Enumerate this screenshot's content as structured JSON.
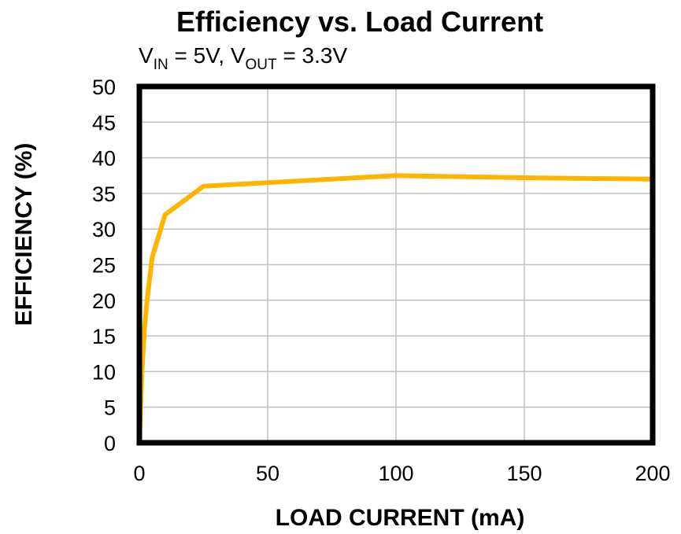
{
  "chart_data": {
    "type": "line",
    "title": "Efficiency vs. Load Current",
    "subtitle": {
      "vin_prefix": "V",
      "vin_sub": "IN",
      "vin_value": " = 5V, ",
      "vout_prefix": "V",
      "vout_sub": "OUT",
      "vout_value": " = 3.3V"
    },
    "xlabel": "LOAD CURRENT (mA)",
    "ylabel": "EFFICIENCY (%)",
    "xlim": [
      0,
      200
    ],
    "ylim": [
      0,
      50
    ],
    "xticks": [
      0,
      50,
      100,
      150,
      200
    ],
    "yticks": [
      0,
      5,
      10,
      15,
      20,
      25,
      30,
      35,
      40,
      45,
      50
    ],
    "grid": true,
    "series": [
      {
        "color": "#FFB400",
        "x": [
          0,
          0.5,
          1,
          2,
          3,
          5,
          10,
          25,
          50,
          100,
          150,
          200
        ],
        "y": [
          0,
          5,
          10,
          16,
          20,
          26,
          32,
          36,
          36.5,
          37.5,
          37.2,
          37
        ]
      }
    ]
  }
}
